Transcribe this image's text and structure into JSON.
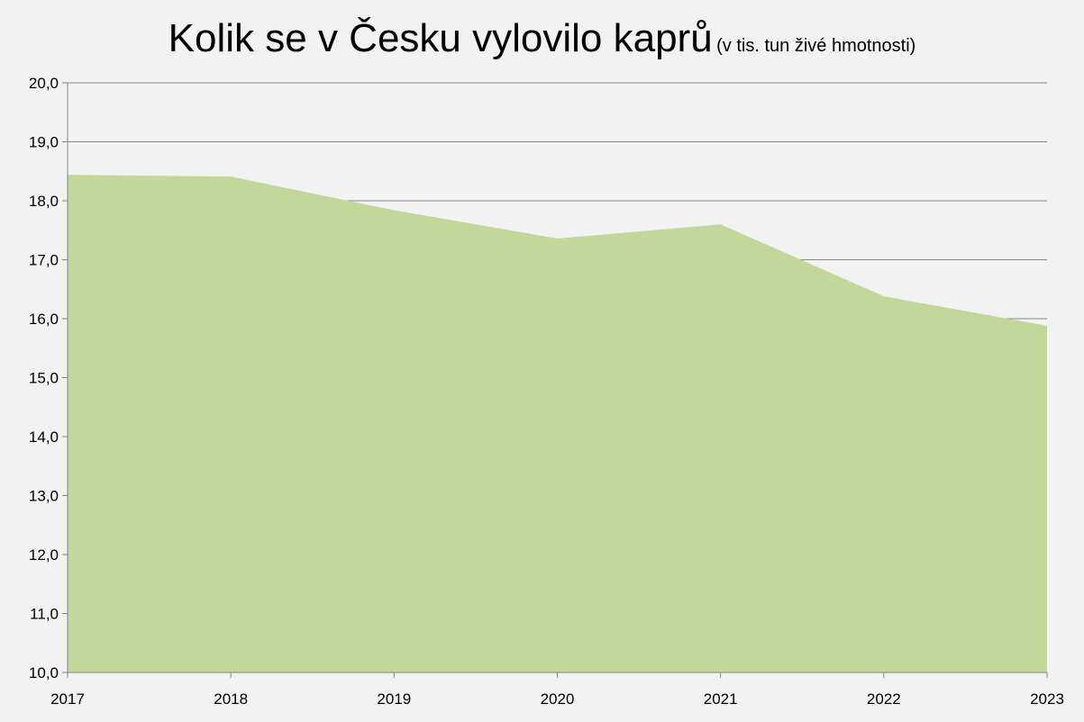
{
  "chart_data": {
    "type": "area",
    "title": "Kolik se v Česku vylovilo kaprů",
    "subtitle": "(v tis. tun živé hmotnosti)",
    "xlabel": "",
    "ylabel": "",
    "categories": [
      "2017",
      "2018",
      "2019",
      "2020",
      "2021",
      "2022",
      "2023"
    ],
    "values": [
      18.44,
      18.41,
      17.84,
      17.36,
      17.6,
      16.38,
      15.88
    ],
    "ylim": [
      10,
      20
    ],
    "y_ticks": [
      "10,0",
      "11,0",
      "12,0",
      "13,0",
      "14,0",
      "15,0",
      "16,0",
      "17,0",
      "18,0",
      "19,0",
      "20,0"
    ],
    "grid": true,
    "legend": "none",
    "colors": {
      "area": "#c4d79b",
      "background": "#f2f2f2",
      "grid": "#868686"
    }
  }
}
